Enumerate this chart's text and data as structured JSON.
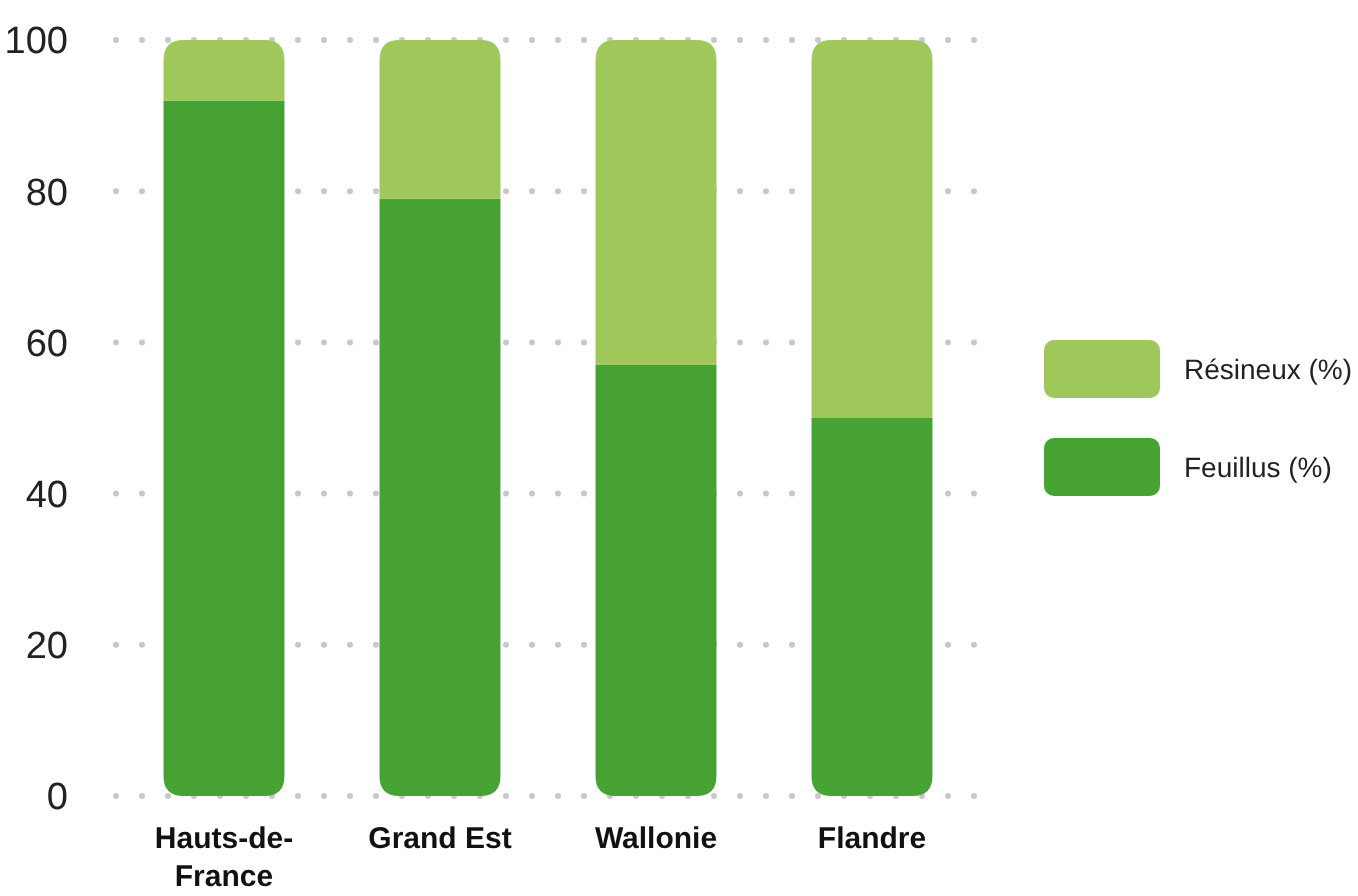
{
  "chart_data": {
    "type": "bar",
    "stacked": true,
    "categories": [
      "Hauts-de-France",
      "Grand Est",
      "Wallonie",
      "Flandre"
    ],
    "series": [
      {
        "name": "Feuillus (%)",
        "color": "#46a232",
        "values": [
          92,
          79,
          57,
          50
        ]
      },
      {
        "name": "Résineux (%)",
        "color": "#a0c75a",
        "values": [
          8,
          21,
          43,
          50
        ]
      }
    ],
    "ylim": [
      0,
      100
    ],
    "yticks": [
      0,
      20,
      40,
      60,
      80,
      100
    ],
    "grid": "y",
    "legend": "right"
  }
}
